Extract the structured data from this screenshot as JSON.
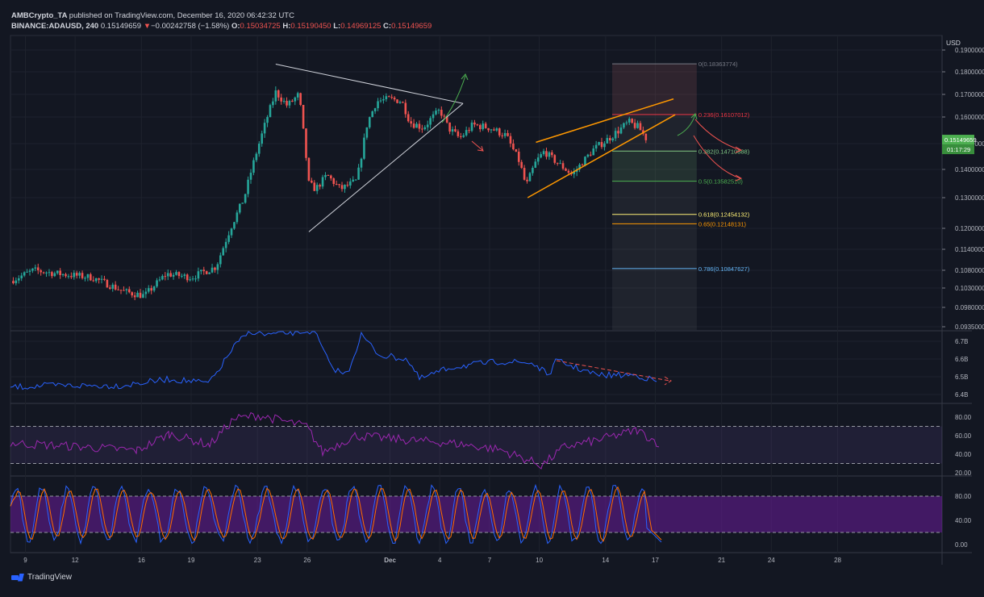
{
  "header": {
    "author": "AMBCrypto_TA",
    "published": "published on TradingView.com, December 16, 2020 06:42:32 UTC",
    "symbol": "BINANCE:ADAUSD, 240",
    "last": "0.15149659",
    "change_arrow": "▼",
    "change": "−0.00242758 (−1.58%)",
    "o_label": "O:",
    "o": "0.15034725",
    "h_label": "H:",
    "h": "0.15190450",
    "l_label": "L:",
    "l": "0.14969125",
    "c_label": "C:",
    "c": "0.15149659"
  },
  "logo_text": "TradingView",
  "colors": {
    "background": "#131722",
    "up": "#26a69a",
    "down": "#ef5350",
    "grid": "#1e222d",
    "axis_text": "#b2b5be",
    "trend_white": "#d1d4dc",
    "channel_orange": "#ff9800",
    "price_tag": "#4caf50"
  },
  "chart_data": [
    {
      "type": "candlestick",
      "currency_label": "USD",
      "symbol": "BINANCE:ADAUSD",
      "interval": "240",
      "price_axis_labels": [
        "0.19000000",
        "0.18000000",
        "0.17000000",
        "0.16000000",
        "0.15000000",
        "0.14000000",
        "0.13000000",
        "0.12000000",
        "0.11400000",
        "0.10800000",
        "0.10300000",
        "0.09800000",
        "0.09350000"
      ],
      "price_axis_values": [
        0.19,
        0.18,
        0.17,
        0.16,
        0.15,
        0.14,
        0.13,
        0.12,
        0.114,
        0.108,
        0.103,
        0.098,
        0.0935
      ],
      "x_axis_labels": [
        "9",
        "12",
        "16",
        "19",
        "23",
        "26",
        "Dec",
        "4",
        "7",
        "10",
        "14",
        "17",
        "21",
        "24",
        "28"
      ],
      "x_axis_days": [
        9,
        12,
        16,
        19,
        23,
        26,
        31,
        34,
        37,
        40,
        44,
        47,
        51,
        54,
        58
      ],
      "time_range_days": [
        8.1,
        64.3
      ],
      "last_price_tag": "0.15149659",
      "countdown_tag": "01:17:29",
      "price_path": [
        {
          "day": 8.1,
          "price": 0.105
        },
        {
          "day": 9.5,
          "price": 0.108
        },
        {
          "day": 11,
          "price": 0.107
        },
        {
          "day": 13,
          "price": 0.106
        },
        {
          "day": 15,
          "price": 0.102
        },
        {
          "day": 16.2,
          "price": 0.101
        },
        {
          "day": 17.5,
          "price": 0.107
        },
        {
          "day": 19,
          "price": 0.106
        },
        {
          "day": 20.5,
          "price": 0.109
        },
        {
          "day": 21.2,
          "price": 0.118
        },
        {
          "day": 22.2,
          "price": 0.13
        },
        {
          "day": 23,
          "price": 0.148
        },
        {
          "day": 23.5,
          "price": 0.158
        },
        {
          "day": 24.1,
          "price": 0.171
        },
        {
          "day": 24.8,
          "price": 0.165
        },
        {
          "day": 25.5,
          "price": 0.17
        },
        {
          "day": 26.1,
          "price": 0.135
        },
        {
          "day": 26.5,
          "price": 0.133
        },
        {
          "day": 27.2,
          "price": 0.138
        },
        {
          "day": 28,
          "price": 0.133
        },
        {
          "day": 29,
          "price": 0.136
        },
        {
          "day": 29.6,
          "price": 0.157
        },
        {
          "day": 30.2,
          "price": 0.167
        },
        {
          "day": 31,
          "price": 0.168
        },
        {
          "day": 31.7,
          "price": 0.167
        },
        {
          "day": 32.2,
          "price": 0.158
        },
        {
          "day": 33,
          "price": 0.156
        },
        {
          "day": 34,
          "price": 0.163
        },
        {
          "day": 34.5,
          "price": 0.156
        },
        {
          "day": 35.2,
          "price": 0.152
        },
        {
          "day": 36,
          "price": 0.157
        },
        {
          "day": 37,
          "price": 0.156
        },
        {
          "day": 38,
          "price": 0.153
        },
        {
          "day": 38.8,
          "price": 0.143
        },
        {
          "day": 39.2,
          "price": 0.134
        },
        {
          "day": 39.8,
          "price": 0.143
        },
        {
          "day": 40.3,
          "price": 0.147
        },
        {
          "day": 41,
          "price": 0.143
        },
        {
          "day": 42,
          "price": 0.138
        },
        {
          "day": 42.5,
          "price": 0.142
        },
        {
          "day": 43.3,
          "price": 0.148
        },
        {
          "day": 44,
          "price": 0.151
        },
        {
          "day": 44.8,
          "price": 0.155
        },
        {
          "day": 45.4,
          "price": 0.158
        },
        {
          "day": 46,
          "price": 0.156
        },
        {
          "day": 46.5,
          "price": 0.1515
        }
      ],
      "drawings": {
        "triangle": [
          {
            "day": 24.1,
            "price": 0.1835
          },
          {
            "day": 35.4,
            "price": 0.166
          },
          {
            "day": 26.1,
            "price": 0.119
          },
          {
            "day": 35.4,
            "price": 0.166
          }
        ],
        "channel_upper": [
          {
            "day": 39.8,
            "price": 0.1505
          },
          {
            "day": 48.1,
            "price": 0.168
          }
        ],
        "channel_lower": [
          {
            "day": 39.3,
            "price": 0.13
          },
          {
            "day": 48.2,
            "price": 0.161
          }
        ]
      },
      "fib_retracement": {
        "day_range": [
          44.4,
          49.5
        ],
        "levels": [
          {
            "label": "0",
            "value": "0.18363774",
            "price": 0.18363774,
            "color": "#787b86"
          },
          {
            "label": "0.236",
            "value": "0.16107012",
            "price": 0.16107012,
            "color": "#f23645"
          },
          {
            "label": "0.382",
            "value": "0.14710888",
            "price": 0.14710888,
            "color": "#81c784"
          },
          {
            "label": "0.5",
            "value": "0.13582510",
            "price": 0.1358251,
            "color": "#4caf50"
          },
          {
            "label": "0.618",
            "value": "0.12454132",
            "price": 0.12454132,
            "color": "#fff176"
          },
          {
            "label": "0.65",
            "value": "0.12148131",
            "price": 0.12148131,
            "color": "#ff9800"
          },
          {
            "label": "0.786",
            "value": "0.10847627",
            "price": 0.10847627,
            "color": "#64b5f6"
          }
        ]
      }
    },
    {
      "type": "line",
      "pane": "volume-indicator",
      "axis_labels": [
        "6.7B",
        "6.6B",
        "6.5B",
        "6.4B"
      ],
      "axis_values": [
        6.7,
        6.6,
        6.5,
        6.4
      ],
      "line_color": "#2962ff",
      "divergence_line_color": "#ef5350"
    },
    {
      "type": "line",
      "pane": "rsi",
      "axis_labels": [
        "80.00",
        "60.00",
        "40.00",
        "20.00"
      ],
      "axis_values": [
        80,
        60,
        40,
        20
      ],
      "upper_band": 70,
      "lower_band": 30,
      "line_color": "#9c27b0"
    },
    {
      "type": "line",
      "pane": "stochastic-rsi",
      "axis_labels": [
        "80.00",
        "40.00",
        "0.00"
      ],
      "axis_values": [
        80,
        40,
        0
      ],
      "upper_band": 80,
      "lower_band": 20,
      "series": [
        {
          "color": "#2962ff"
        },
        {
          "color": "#ff6d00"
        }
      ]
    }
  ]
}
